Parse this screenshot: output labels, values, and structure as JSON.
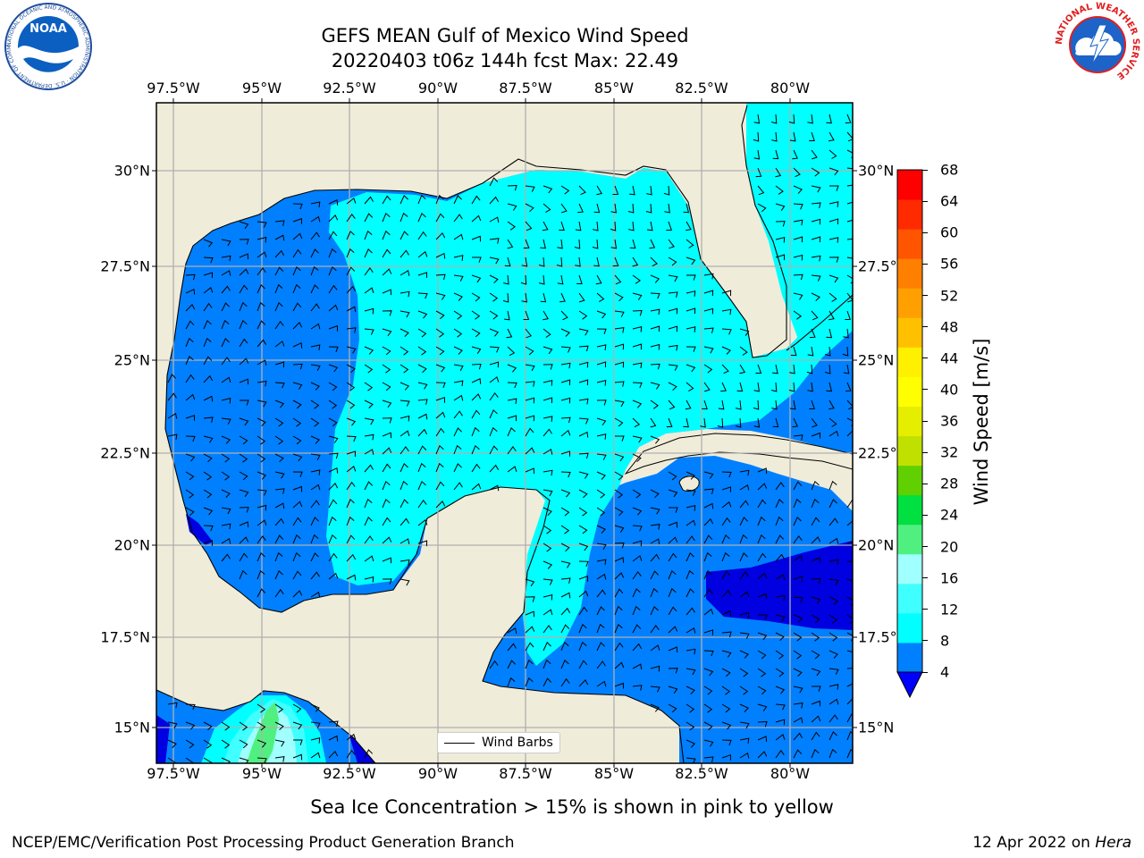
{
  "header": {
    "title_line1": "GEFS MEAN Gulf of Mexico Wind Speed",
    "title_line2": "20220403 t06z 144h fcst   Max: 22.49"
  },
  "logos": {
    "left": "noara-logo",
    "right": "nws-logo",
    "noaa_text": "NOAA",
    "noaa_ring_text": "NATIONAL OCEANIC AND ATMOSPHERIC ADMINISTRATION · U.S. DEPARTMENT OF COMMERCE",
    "nws_ring_text": "NATIONAL WEATHER SERVICE"
  },
  "map": {
    "lon_labels": [
      "97.5°W",
      "95°W",
      "92.5°W",
      "90°W",
      "87.5°W",
      "85°W",
      "82.5°W",
      "80°W"
    ],
    "lat_labels": [
      "30°N",
      "27.5°N",
      "25°N",
      "22.5°N",
      "20°N",
      "17.5°N",
      "15°N"
    ],
    "legend_label": "Wind Barbs"
  },
  "colorbar": {
    "label": "Wind Speed [m/s]",
    "ticks": [
      "68",
      "64",
      "60",
      "56",
      "52",
      "48",
      "44",
      "40",
      "36",
      "32",
      "28",
      "24",
      "20",
      "16",
      "12",
      "8",
      "4"
    ],
    "colors_bottom_to_top": [
      "#0080ff",
      "#00ffff",
      "#40ffff",
      "#a0ffff",
      "#50f080",
      "#00e040",
      "#60d000",
      "#c0e000",
      "#e6ee00",
      "#ffff00",
      "#fff000",
      "#ffc000",
      "#ffa000",
      "#ff8000",
      "#ff5500",
      "#ff2a00",
      "#ff0000"
    ],
    "under_color": "#0000ff"
  },
  "colors": {
    "land": "#efecda",
    "grid": "#b0b0b0",
    "speed_4_8": "#0080ff",
    "speed_8_12": "#00ffff",
    "speed_under_4": "#0000e0"
  },
  "footer": {
    "caption": "Sea Ice Concentration > 15% is shown in pink to yellow",
    "credit": "NCEP/EMC/Verification Post Processing Product Generation Branch",
    "date_text": "12 Apr 2022 on",
    "machine": "Hera"
  }
}
